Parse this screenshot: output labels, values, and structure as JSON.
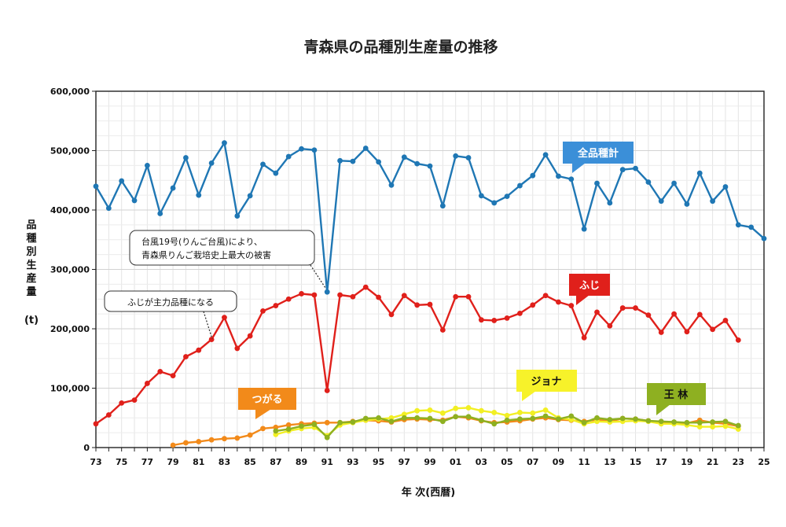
{
  "chart_data": {
    "type": "line",
    "title": "青森県の品種別生産量の推移",
    "xlabel": "年 次(西暦)",
    "ylabel": "品種別生産量",
    "yunit": "(t)",
    "ylim": [
      0,
      600000
    ],
    "yticks": [
      "0",
      "100,000",
      "200,000",
      "300,000",
      "400,000",
      "500,000",
      "600,000"
    ],
    "xlim": [
      1973,
      2025
    ],
    "xtick_labels": [
      "73",
      "75",
      "77",
      "79",
      "81",
      "83",
      "85",
      "87",
      "89",
      "91",
      "93",
      "95",
      "97",
      "99",
      "01",
      "03",
      "05",
      "07",
      "09",
      "11",
      "13",
      "15",
      "17",
      "19",
      "21",
      "23",
      "25"
    ],
    "grid": true,
    "series": [
      {
        "name": "全品種計",
        "color": "#1f77b4",
        "x": [
          1973,
          1974,
          1975,
          1976,
          1977,
          1978,
          1979,
          1980,
          1981,
          1982,
          1983,
          1984,
          1985,
          1986,
          1987,
          1988,
          1989,
          1990,
          1991,
          1992,
          1993,
          1994,
          1995,
          1996,
          1997,
          1998,
          1999,
          2000,
          2001,
          2002,
          2003,
          2004,
          2005,
          2006,
          2007,
          2008,
          2009,
          2010,
          2011,
          2012,
          2013,
          2014,
          2015,
          2016,
          2017,
          2018,
          2019,
          2020,
          2021,
          2022,
          2023,
          2024,
          2025
        ],
        "values": [
          440000,
          403000,
          449000,
          416000,
          475000,
          394000,
          437000,
          488000,
          425000,
          479000,
          513000,
          390000,
          424000,
          477000,
          462000,
          490000,
          503000,
          501000,
          262000,
          483000,
          482000,
          504000,
          481000,
          442000,
          489000,
          478000,
          474000,
          407000,
          491000,
          488000,
          424000,
          412000,
          423000,
          441000,
          458000,
          493000,
          457000,
          452000,
          368000,
          445000,
          412000,
          468000,
          470000,
          447000,
          415000,
          445000,
          410000,
          462000,
          415000,
          439000,
          375000,
          371000,
          352000
        ]
      },
      {
        "name": "ふじ",
        "color": "#e0201b",
        "x": [
          1973,
          1974,
          1975,
          1976,
          1977,
          1978,
          1979,
          1980,
          1981,
          1982,
          1983,
          1984,
          1985,
          1986,
          1987,
          1988,
          1989,
          1990,
          1991,
          1992,
          1993,
          1994,
          1995,
          1996,
          1997,
          1998,
          1999,
          2000,
          2001,
          2002,
          2003,
          2004,
          2005,
          2006,
          2007,
          2008,
          2009,
          2010,
          2011,
          2012,
          2013,
          2014,
          2015,
          2016,
          2017,
          2018,
          2019,
          2020,
          2021,
          2022,
          2023
        ],
        "values": [
          40000,
          55000,
          75000,
          80000,
          108000,
          128000,
          121000,
          153000,
          164000,
          182000,
          219000,
          167000,
          188000,
          230000,
          239000,
          250000,
          259000,
          257000,
          96000,
          257000,
          254000,
          270000,
          253000,
          224000,
          256000,
          240000,
          241000,
          198000,
          254000,
          254000,
          215000,
          214000,
          218000,
          226000,
          240000,
          256000,
          245000,
          239000,
          185000,
          228000,
          205000,
          235000,
          235000,
          223000,
          194000,
          225000,
          195000,
          224000,
          199000,
          214000,
          181000
        ]
      },
      {
        "name": "つがる",
        "color": "#f28a1a",
        "x": [
          1979,
          1980,
          1981,
          1982,
          1983,
          1984,
          1985,
          1986,
          1987,
          1988,
          1989,
          1990,
          1991,
          1992,
          1993,
          1994,
          1995,
          1996,
          1997,
          1998,
          1999,
          2000,
          2001,
          2002,
          2003,
          2004,
          2005,
          2006,
          2007,
          2008,
          2009,
          2010,
          2011,
          2012,
          2013,
          2014,
          2015,
          2016,
          2017,
          2018,
          2019,
          2020,
          2021,
          2022,
          2023
        ],
        "values": [
          4000,
          8000,
          10000,
          13000,
          15000,
          16000,
          21000,
          32000,
          34000,
          38000,
          40000,
          41000,
          42000,
          42000,
          44000,
          46000,
          45000,
          43000,
          47000,
          48000,
          47000,
          46000,
          52000,
          50000,
          45000,
          42000,
          43000,
          45000,
          48000,
          50000,
          47000,
          46000,
          44000,
          47000,
          44000,
          49000,
          48000,
          45000,
          42000,
          42000,
          41000,
          46000,
          42000,
          40000,
          36000
        ]
      },
      {
        "name": "ジョナ",
        "color": "#f2ef24",
        "x": [
          1987,
          1988,
          1989,
          1990,
          1991,
          1992,
          1993,
          1994,
          1995,
          1996,
          1997,
          1998,
          1999,
          2000,
          2001,
          2002,
          2003,
          2004,
          2005,
          2006,
          2007,
          2008,
          2009,
          2010,
          2011,
          2012,
          2013,
          2014,
          2015,
          2016,
          2017,
          2018,
          2019,
          2020,
          2021,
          2022,
          2023
        ],
        "values": [
          22000,
          28000,
          32000,
          34000,
          20000,
          38000,
          42000,
          46000,
          48000,
          50000,
          56000,
          62000,
          63000,
          58000,
          66000,
          67000,
          62000,
          59000,
          54000,
          59000,
          58000,
          63000,
          50000,
          47000,
          40000,
          44000,
          43000,
          44000,
          45000,
          44000,
          40000,
          40000,
          38000,
          35000,
          35000,
          36000,
          31000
        ]
      },
      {
        "name": "王 林",
        "color": "#8eb021",
        "x": [
          1987,
          1988,
          1989,
          1990,
          1991,
          1992,
          1993,
          1994,
          1995,
          1996,
          1997,
          1998,
          1999,
          2000,
          2001,
          2002,
          2003,
          2004,
          2005,
          2006,
          2007,
          2008,
          2009,
          2010,
          2011,
          2012,
          2013,
          2014,
          2015,
          2016,
          2017,
          2018,
          2019,
          2020,
          2021,
          2022,
          2023
        ],
        "values": [
          28000,
          31000,
          36000,
          39000,
          17000,
          42000,
          43000,
          49000,
          50000,
          44000,
          50000,
          50000,
          49000,
          44000,
          52000,
          52000,
          46000,
          40000,
          46000,
          48000,
          49000,
          53000,
          48000,
          53000,
          42000,
          50000,
          47000,
          49000,
          48000,
          45000,
          44000,
          43000,
          42000,
          42000,
          43000,
          44000,
          37000
        ]
      }
    ],
    "annotations": [
      {
        "line1": "台風19号(りんご台風)により、",
        "line2": "青森県りんご栽培史上最大の被害"
      },
      {
        "line1": "ふじが主力品種になる"
      }
    ]
  }
}
